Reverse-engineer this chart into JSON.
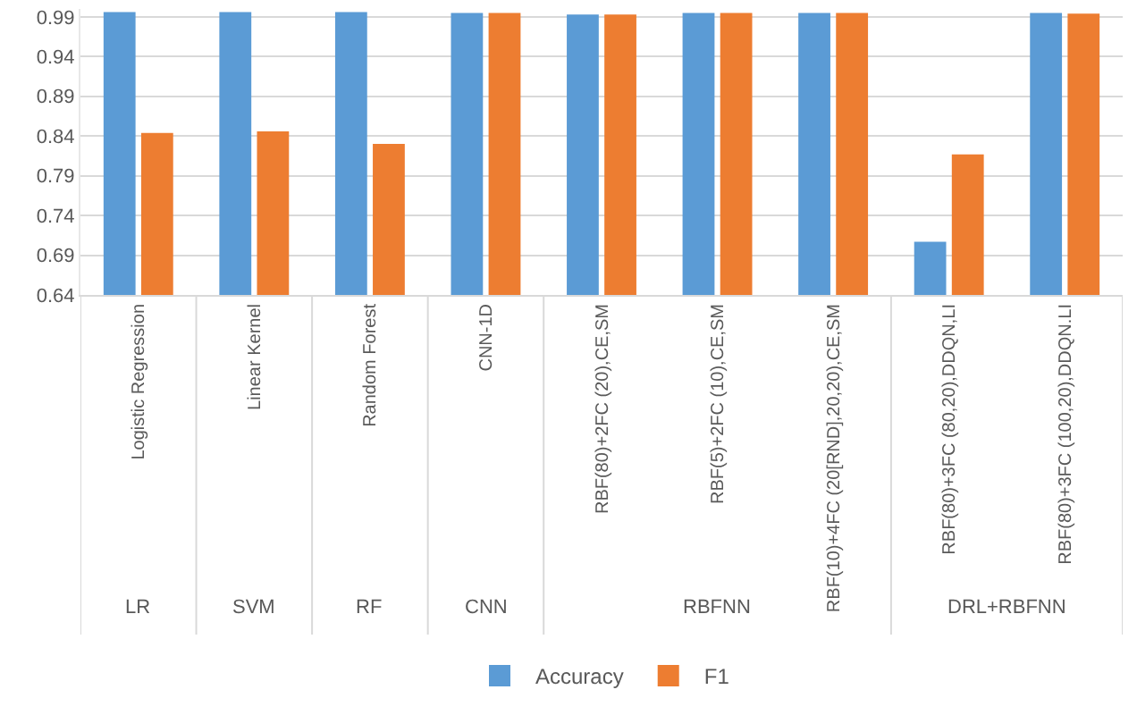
{
  "chart_data": {
    "type": "bar",
    "categories": [
      "Logistic Regression",
      "Linear Kernel",
      "Random Forest",
      "CNN-1D",
      "RBF(80)+2FC (20),CE,SM",
      "RBF(5)+2FC (10),CE,SM",
      "RBF(10)+4FC (20[RND],20,20),CE,SM",
      "RBF(80)+3FC (80,20),DDQN,LI",
      "RBF(80)+3FC (100,20),DDQN.LI"
    ],
    "series": [
      {
        "name": "Accuracy",
        "color": "#5b9bd5",
        "values": [
          0.996,
          0.996,
          0.996,
          0.995,
          0.993,
          0.995,
          0.995,
          0.707,
          0.995
        ]
      },
      {
        "name": "F1",
        "color": "#ed7d31",
        "values": [
          0.844,
          0.846,
          0.83,
          0.995,
          0.993,
          0.995,
          0.995,
          0.817,
          0.994
        ]
      }
    ],
    "annotations": [
      "LR",
      "SVM",
      "RF",
      "CNN",
      "RBFNN",
      "DRL+RBFNN"
    ],
    "ylim": [
      0.64,
      1.0
    ],
    "yticks": [
      0.64,
      0.69,
      0.74,
      0.79,
      0.84,
      0.89,
      0.94,
      0.99
    ],
    "grid": "y",
    "legend": "bottom"
  }
}
